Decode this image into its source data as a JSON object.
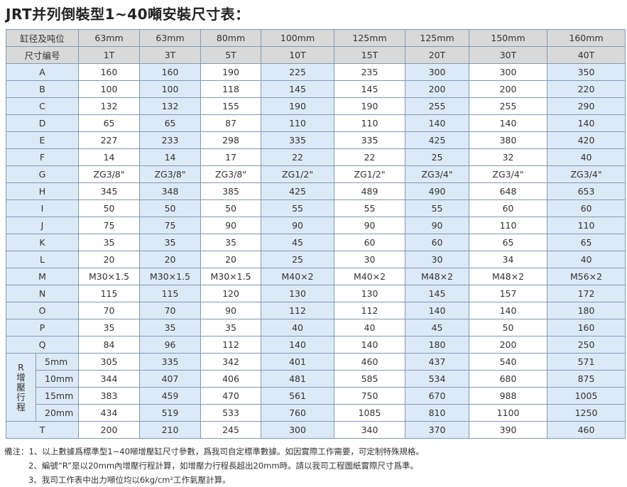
{
  "title": "JRT并列倒裝型1~40噸安裝尺寸表：",
  "table": {
    "header": [
      [
        "缸径及吨位",
        "63mm",
        "63mm",
        "80mm",
        "100mm",
        "125mm",
        "125mm",
        "150mm",
        "160mm"
      ],
      [
        "尺寸编号",
        "1T",
        "3T",
        "5T",
        "10T",
        "15T",
        "20T",
        "30T",
        "40T"
      ]
    ],
    "rows": [
      [
        "A",
        "160",
        "160",
        "190",
        "225",
        "235",
        "300",
        "300",
        "350"
      ],
      [
        "B",
        "100",
        "100",
        "118",
        "145",
        "145",
        "200",
        "200",
        "220"
      ],
      [
        "C",
        "132",
        "132",
        "155",
        "190",
        "190",
        "255",
        "255",
        "290"
      ],
      [
        "D",
        "65",
        "65",
        "87",
        "110",
        "110",
        "140",
        "140",
        "140"
      ],
      [
        "E",
        "227",
        "233",
        "298",
        "335",
        "335",
        "425",
        "380",
        "420"
      ],
      [
        "F",
        "14",
        "14",
        "17",
        "22",
        "22",
        "25",
        "32",
        "40"
      ],
      [
        "G",
        "ZG3/8\"",
        "ZG3/8\"",
        "ZG3/8\"",
        "ZG1/2\"",
        "ZG1/2\"",
        "ZG3/4\"",
        "ZG3/4\"",
        "ZG3/4\""
      ],
      [
        "H",
        "345",
        "348",
        "385",
        "425",
        "489",
        "490",
        "648",
        "653"
      ],
      [
        "I",
        "50",
        "50",
        "50",
        "55",
        "55",
        "55",
        "60",
        "60"
      ],
      [
        "J",
        "75",
        "75",
        "90",
        "90",
        "90",
        "90",
        "110",
        "110"
      ],
      [
        "K",
        "35",
        "35",
        "35",
        "45",
        "60",
        "60",
        "65",
        "65"
      ],
      [
        "L",
        "20",
        "20",
        "20",
        "25",
        "30",
        "30",
        "34",
        "40"
      ],
      [
        "M",
        "M30×1.5",
        "M30×1.5",
        "M30×1.5",
        "M40×2",
        "M40×2",
        "M48×2",
        "M48×2",
        "M56×2"
      ],
      [
        "N",
        "115",
        "115",
        "120",
        "130",
        "130",
        "145",
        "157",
        "172"
      ],
      [
        "O",
        "70",
        "70",
        "90",
        "112",
        "112",
        "140",
        "140",
        "180"
      ],
      [
        "P",
        "35",
        "35",
        "35",
        "40",
        "40",
        "45",
        "50",
        "160"
      ],
      [
        "Q",
        "84",
        "96",
        "112",
        "140",
        "140",
        "180",
        "200",
        "250"
      ]
    ],
    "r_group": {
      "label": "R增壓行程",
      "rows": [
        [
          "5mm",
          "305",
          "335",
          "342",
          "401",
          "460",
          "437",
          "540",
          "571"
        ],
        [
          "10mm",
          "344",
          "407",
          "406",
          "481",
          "585",
          "534",
          "680",
          "875"
        ],
        [
          "15mm",
          "383",
          "459",
          "470",
          "561",
          "750",
          "670",
          "988",
          "1005"
        ],
        [
          "20mm",
          "434",
          "519",
          "533",
          "760",
          "1085",
          "810",
          "1100",
          "1250"
        ]
      ]
    },
    "last_row": [
      "T",
      "200",
      "210",
      "245",
      "300",
      "340",
      "370",
      "390",
      "460"
    ]
  },
  "notes": {
    "label": "備注：",
    "items": [
      "1、以上數據爲標準型1~40噸增壓缸尺寸參數，爲我司自定標準數據。如因實際工作需要，可定制特殊規格。",
      "2、編號“R”是以20mm內增壓行程計算，如增壓力行程長超出20mm時。請以我司工程圖紙實際尺寸爲準。",
      "3、我司工作表中出力噸位均以6kg/cm²工作氣壓計算。"
    ]
  }
}
